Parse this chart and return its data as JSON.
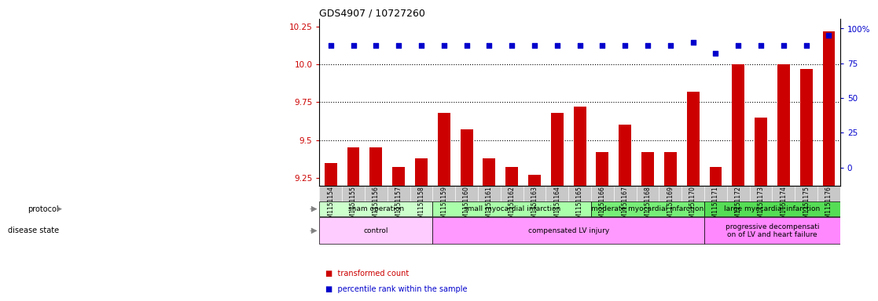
{
  "title": "GDS4907 / 10727260",
  "samples": [
    "GSM1151154",
    "GSM1151155",
    "GSM1151156",
    "GSM1151157",
    "GSM1151158",
    "GSM1151159",
    "GSM1151160",
    "GSM1151161",
    "GSM1151162",
    "GSM1151163",
    "GSM1151164",
    "GSM1151165",
    "GSM1151166",
    "GSM1151167",
    "GSM1151168",
    "GSM1151169",
    "GSM1151170",
    "GSM1151171",
    "GSM1151172",
    "GSM1151173",
    "GSM1151174",
    "GSM1151175",
    "GSM1151176"
  ],
  "bar_values": [
    9.35,
    9.45,
    9.45,
    9.32,
    9.38,
    9.68,
    9.57,
    9.38,
    9.32,
    9.27,
    9.68,
    9.72,
    9.42,
    9.6,
    9.42,
    9.42,
    9.82,
    9.32,
    10.0,
    9.65,
    10.0,
    9.97,
    10.22
  ],
  "percentile_values": [
    88,
    88,
    88,
    88,
    88,
    88,
    88,
    88,
    88,
    88,
    88,
    88,
    88,
    88,
    88,
    88,
    90,
    82,
    88,
    88,
    88,
    88,
    95
  ],
  "bar_color": "#cc0000",
  "dot_color": "#0000cc",
  "ylim_left": [
    9.2,
    10.3
  ],
  "ylim_right": [
    -13,
    107
  ],
  "yticks_left": [
    9.25,
    9.5,
    9.75,
    10.0,
    10.25
  ],
  "yticks_right": [
    0,
    25,
    50,
    75,
    100
  ],
  "ytick_right_labels": [
    "0",
    "25",
    "50",
    "75",
    "100%"
  ],
  "dotted_lines": [
    9.5,
    9.75,
    10.0
  ],
  "protocol_groups": [
    {
      "label": "sham operation",
      "start": 0,
      "end": 4,
      "color": "#ccffcc"
    },
    {
      "label": "small myocardial infarction",
      "start": 5,
      "end": 11,
      "color": "#aaffaa"
    },
    {
      "label": "moderate myocardial infarction",
      "start": 12,
      "end": 16,
      "color": "#77ee77"
    },
    {
      "label": "large myocardial infarction",
      "start": 17,
      "end": 22,
      "color": "#55dd55"
    }
  ],
  "disease_groups": [
    {
      "label": "control",
      "start": 0,
      "end": 4,
      "color": "#ffccff"
    },
    {
      "label": "compensated LV injury",
      "start": 5,
      "end": 16,
      "color": "#ff99ff"
    },
    {
      "label": "progressive decompensati\non of LV and heart failure",
      "start": 17,
      "end": 22,
      "color": "#ff88ff"
    }
  ],
  "legend_items": [
    {
      "label": "transformed count",
      "color": "#cc0000"
    },
    {
      "label": "percentile rank within the sample",
      "color": "#0000cc"
    }
  ],
  "bar_width": 0.55,
  "xtick_bg": "#c8c8c8",
  "label_color_left": "#cc0000",
  "label_color_right": "#0000cc",
  "fig_bg": "#ffffff"
}
